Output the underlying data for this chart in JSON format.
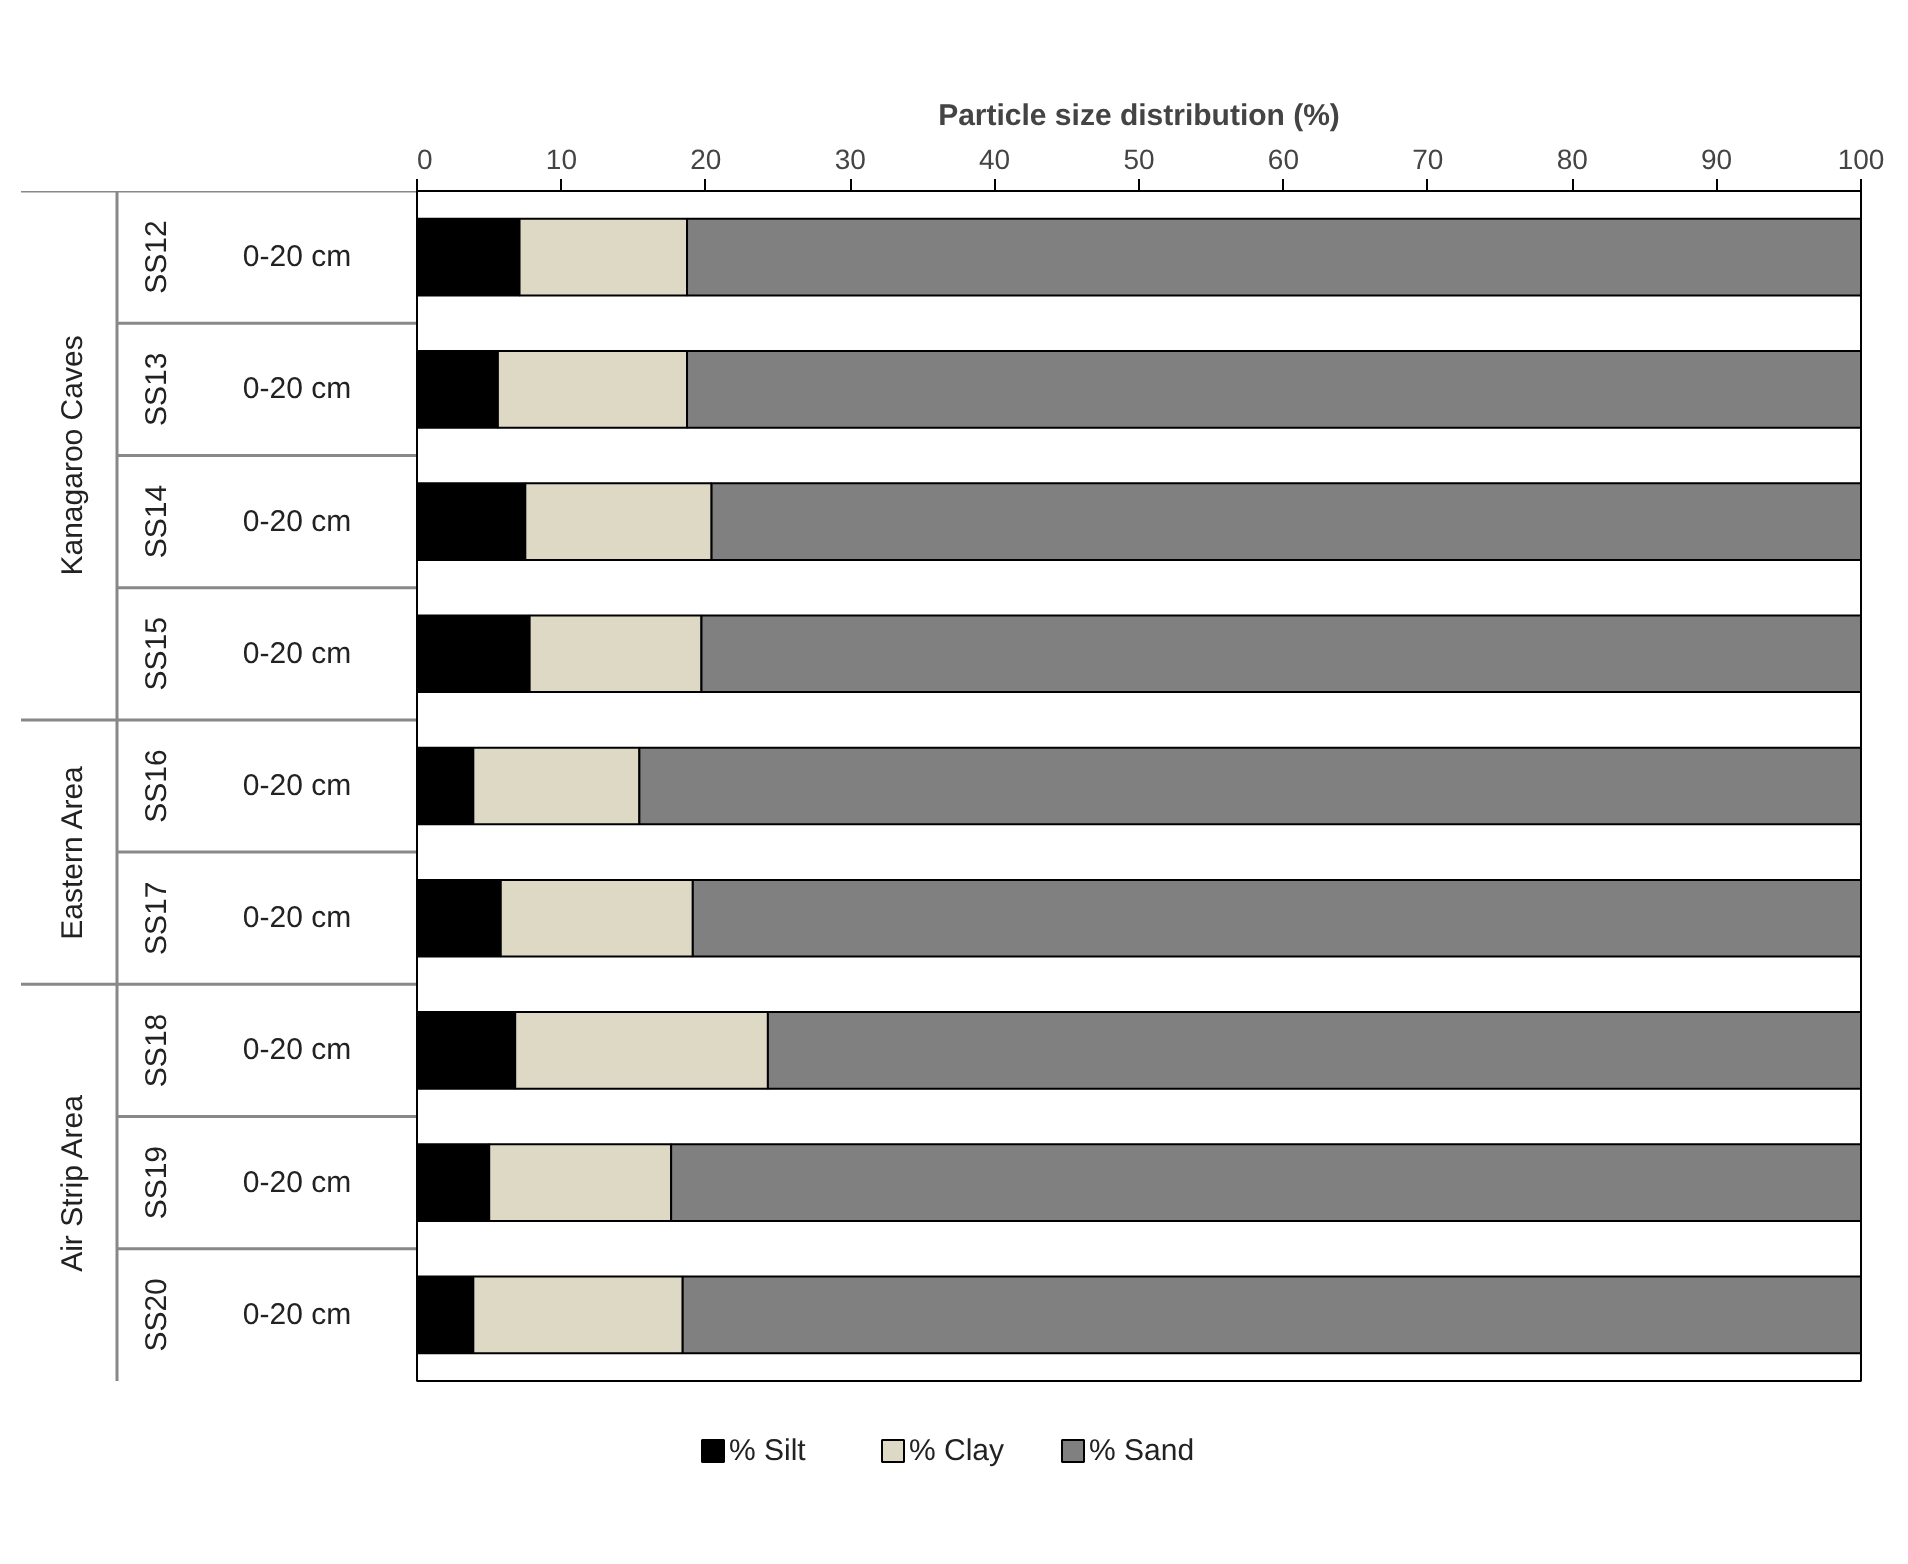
{
  "chart_data": {
    "type": "bar",
    "orientation": "horizontal",
    "stacked": true,
    "xlabel": "Particle size distribution (%)",
    "categories": [
      "SS12",
      "SS13",
      "SS14",
      "SS15",
      "SS16",
      "SS17",
      "SS18",
      "SS19",
      "SS20"
    ],
    "series": [
      {
        "name": "% Silt",
        "color": "#000000",
        "values": [
          7.1,
          5.6,
          7.5,
          7.8,
          3.9,
          5.8,
          6.8,
          5.0,
          3.9
        ]
      },
      {
        "name": "% Clay",
        "color": "#ddd9c4",
        "values": [
          11.6,
          13.1,
          12.9,
          11.9,
          11.5,
          13.3,
          17.5,
          12.6,
          14.5
        ]
      },
      {
        "name": "% Sand",
        "color": "#808080",
        "values": [
          81.3,
          81.3,
          79.6,
          80.3,
          84.6,
          80.9,
          75.7,
          82.4,
          81.6
        ]
      }
    ],
    "xlim": [
      0,
      100
    ],
    "xticks": [
      0,
      10,
      20,
      30,
      40,
      50,
      60,
      70,
      80,
      90,
      100
    ],
    "legend": "bottom",
    "annotations": [
      "0-20 cm",
      "0-20 cm",
      "0-20 cm",
      "0-20 cm",
      "0-20 cm",
      "0-20 cm",
      "0-20 cm",
      "0-20 cm",
      "0-20 cm",
      "Kanagaroo Caves",
      "Eastern Area",
      "Air Strip Area"
    ]
  }
}
